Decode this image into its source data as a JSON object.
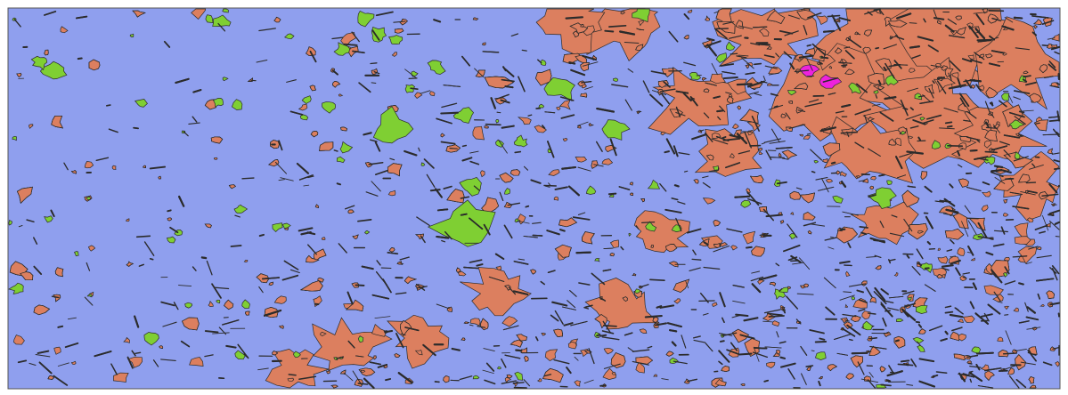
{
  "map": {
    "colors": {
      "background": "#8f9fee",
      "class_a": "#dc7f5f",
      "class_b": "#7fcf33",
      "class_c": "#ee22dd",
      "outline": "#2b2b2b",
      "frame": "#555555"
    },
    "layers": [
      {
        "name": "water-background",
        "color": "#8f9fee"
      },
      {
        "name": "orange-patches",
        "color": "#dc7f5f"
      },
      {
        "name": "green-patches",
        "color": "#7fcf33"
      },
      {
        "name": "magenta-patches",
        "color": "#ee22dd"
      },
      {
        "name": "outline-strokes",
        "color": "#2b2b2b"
      }
    ]
  }
}
